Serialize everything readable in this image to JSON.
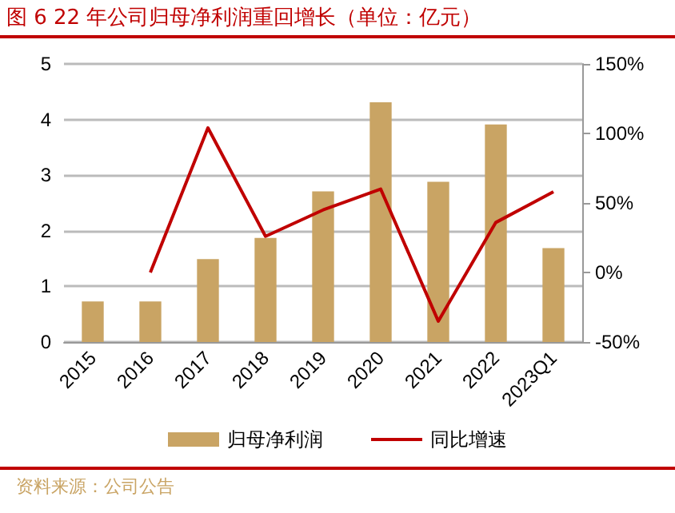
{
  "chart_data": {
    "type": "bar",
    "title": "图 6   22 年公司归母净利润重回增长（单位：亿元）",
    "categories": [
      "2015",
      "2016",
      "2017",
      "2018",
      "2019",
      "2020",
      "2021",
      "2022",
      "2023Q1"
    ],
    "series": [
      {
        "name": "归母净利润",
        "color": "#c9a464",
        "values": [
          0.73,
          0.73,
          1.49,
          1.87,
          2.71,
          4.31,
          2.88,
          3.91,
          1.69
        ]
      },
      {
        "name": "同比增速",
        "type": "line",
        "axis": "y2",
        "color": "#c00000",
        "values": [
          null,
          0,
          104,
          26,
          45,
          60,
          -35,
          36,
          58
        ]
      }
    ],
    "ylim": [
      0,
      5
    ],
    "yticks": [
      0,
      1,
      2,
      3,
      4,
      5
    ],
    "y2lim": [
      -50,
      150
    ],
    "y2ticks": [
      {
        "value": -50,
        "label": "-50%"
      },
      {
        "value": 0,
        "label": "0%"
      },
      {
        "value": 50,
        "label": "50%"
      },
      {
        "value": 100,
        "label": "100%"
      },
      {
        "value": 150,
        "label": "150%"
      }
    ],
    "grid": "y",
    "legend": "bottom",
    "marker": "none",
    "line_style": "solid",
    "annotations": [
      "资料来源：公司公告"
    ]
  }
}
